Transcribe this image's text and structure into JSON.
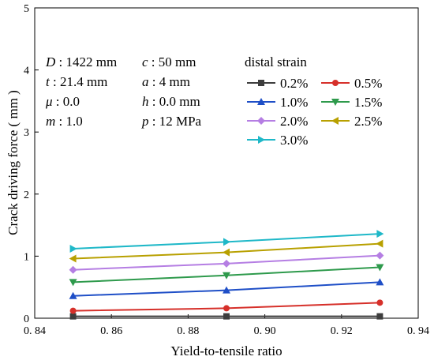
{
  "chart_data": {
    "type": "line",
    "title": "",
    "xlabel": "Yield-to-tensile ratio",
    "ylabel": "Crack driving force ( mm )",
    "xlim": [
      0.84,
      0.94
    ],
    "ylim": [
      0,
      5
    ],
    "x_ticks": [
      "0. 84",
      "0. 86",
      "0. 88",
      "0. 90",
      "0. 92",
      "0. 94"
    ],
    "y_ticks": [
      "0",
      "1",
      "2",
      "3",
      "4",
      "5"
    ],
    "x": [
      0.85,
      0.89,
      0.93
    ],
    "legend_title": "distal strain",
    "legend_placement": "top-right",
    "series": [
      {
        "name": "0.2%",
        "color": "#3d3d3d",
        "marker": "square",
        "values": [
          0.03,
          0.03,
          0.03
        ]
      },
      {
        "name": "0.5%",
        "color": "#d6302a",
        "marker": "circle",
        "values": [
          0.12,
          0.16,
          0.25
        ]
      },
      {
        "name": "1.0%",
        "color": "#1f4fc7",
        "marker": "triangle-up",
        "values": [
          0.36,
          0.45,
          0.58
        ]
      },
      {
        "name": "1.5%",
        "color": "#2e9a4c",
        "marker": "triangle-down",
        "values": [
          0.58,
          0.69,
          0.82
        ]
      },
      {
        "name": "2.0%",
        "color": "#b57ee3",
        "marker": "diamond",
        "values": [
          0.78,
          0.88,
          1.01
        ]
      },
      {
        "name": "2.5%",
        "color": "#b8a000",
        "marker": "triangle-left",
        "values": [
          0.96,
          1.06,
          1.2
        ]
      },
      {
        "name": "3.0%",
        "color": "#1fb8c8",
        "marker": "triangle-right",
        "values": [
          1.12,
          1.23,
          1.36
        ]
      }
    ],
    "parameters": [
      {
        "symbol": "D",
        "value": ": 1422 mm"
      },
      {
        "symbol": "t",
        "value": ": 21.4 mm"
      },
      {
        "symbol": "μ",
        "value": ": 0.0"
      },
      {
        "symbol": "m",
        "value": ": 1.0"
      },
      {
        "symbol": "c",
        "value": ": 50 mm"
      },
      {
        "symbol": "a",
        "value": ": 4 mm"
      },
      {
        "symbol": "h",
        "value": ": 0.0 mm"
      },
      {
        "symbol": "p",
        "value": ": 12 MPa"
      }
    ]
  }
}
